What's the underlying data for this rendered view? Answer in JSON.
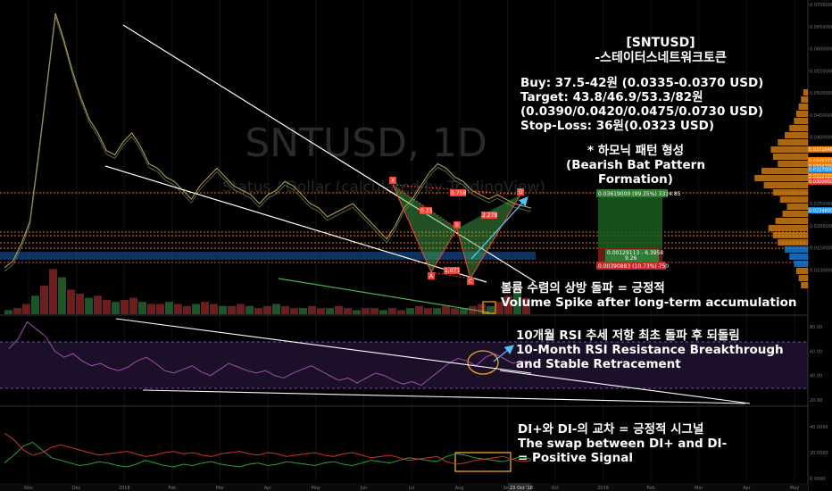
{
  "chart_data": {
    "type": "line",
    "symbol": "SNTUSD, 1D",
    "watermark_title": "SNTUSD, 1D",
    "watermark_sub": "Status / Dollar (calculated by TradingView)",
    "annotations": {
      "title": "[SNTUSD]",
      "subtitle": "-스테이터스네트워크토큰",
      "buy": "Buy: 37.5-42원 (0.0335-0.0370 USD)",
      "target": "Target: 43.8/46.9/53.3/82원",
      "target_usd": "(0.0390/0.0420/0.0475/0.0730 USD)",
      "stop": "Stop-Loss: 36원(0.0323 USD)",
      "pattern_kr": "* 하모닉 패턴 형성",
      "pattern_en": "(Bearish Bat Pattern Formation)",
      "volume_kr": "볼륨 수렴의 상방 돌파 = 긍정적",
      "volume_en": "Volume Spike after long-term accumulation",
      "rsi_kr": "10개월 RSI 추세 저항 최초 돌파 후 되돌림",
      "rsi_en1": "10-Month RSI Resistance Breakthrough",
      "rsi_en2": "and Stable Retracement",
      "di_kr": "DI+와 DI-의 교차 = 긍정적 시그널",
      "di_en1": "The swap between DI+ and DI-",
      "di_en2": "= Positive Signal"
    },
    "harmonic_points": {
      "X": "X",
      "A": "A",
      "B": "B",
      "C": "C",
      "D": "D",
      "ratios": [
        "0.758",
        "0.33",
        "2.278",
        "1.071"
      ]
    },
    "price_axis_labels": [
      "0.07000000",
      "0.06500000",
      "0.06000000",
      "0.05500000",
      "0.05000000",
      "0.04500000",
      "0.04000000",
      "0.03500000",
      "0.03000000",
      "0.02500000",
      "0.02000000",
      "0.01500000",
      "0.01000000"
    ],
    "price_tags": [
      {
        "label": "0.02348000",
        "color": "#2196f3"
      },
      {
        "label": "0.03726467",
        "color": "#f57c00"
      },
      {
        "label": "0.03481630",
        "color": "#f57c00"
      },
      {
        "label": "0.03452735",
        "color": "#f57c00"
      },
      {
        "label": "0.03382000",
        "color": "#f57c00"
      },
      {
        "label": "0.03364235",
        "color": "#f57c00"
      },
      {
        "label": "0.03342000",
        "color": "#f57c00"
      },
      {
        "label": "0.03270000",
        "color": "#2196f3"
      },
      {
        "label": "0.03122000",
        "color": "#f57c00"
      },
      {
        "label": "0.03062000",
        "color": "#f57c00"
      },
      {
        "label": "0.03000000",
        "color": "#f44336"
      }
    ],
    "position_box": {
      "target_label": "0.03619000 (99.35%) 3314.85",
      "entry_label": "0.00129113 - 6.3958",
      "entry_sub": "9.26",
      "stop_label": "0.00390883 (10.73%) 750"
    },
    "rsi_axis": [
      "80.00",
      "60.00",
      "40.00",
      "20.00"
    ],
    "di_axis": [
      "40.0000",
      "20.0000",
      "0.0000"
    ],
    "x_ticks": [
      "Nov",
      "Dec",
      "2018",
      "Feb",
      "Mar",
      "Apr",
      "May",
      "Jun",
      "Jul",
      "Aug",
      "Sep",
      "Oct",
      "2019",
      "Feb",
      "Mar",
      "Apr",
      "May"
    ],
    "x_highlight": "23 Oct '18",
    "series": [
      {
        "name": "price",
        "values": [
          0.0105,
          0.012,
          0.016,
          0.021,
          0.036,
          0.052,
          0.068,
          0.062,
          0.055,
          0.049,
          0.044,
          0.041,
          0.037,
          0.036,
          0.039,
          0.041,
          0.038,
          0.034,
          0.033,
          0.031,
          0.03,
          0.028,
          0.026,
          0.029,
          0.031,
          0.033,
          0.031,
          0.029,
          0.028,
          0.027,
          0.025,
          0.027,
          0.028,
          0.03,
          0.029,
          0.027,
          0.025,
          0.024,
          0.022,
          0.023,
          0.024,
          0.025,
          0.023,
          0.021,
          0.019,
          0.017,
          0.02,
          0.024,
          0.026,
          0.029,
          0.032,
          0.034,
          0.033,
          0.031,
          0.03,
          0.028,
          0.027,
          0.026,
          0.027,
          0.026,
          0.025,
          0.0245,
          0.024
        ]
      },
      {
        "name": "RSI",
        "values": [
          62,
          70,
          84,
          78,
          72,
          60,
          55,
          58,
          52,
          48,
          50,
          46,
          44,
          47,
          52,
          55,
          50,
          44,
          42,
          45,
          48,
          43,
          40,
          45,
          50,
          47,
          44,
          42,
          44,
          40,
          38,
          42,
          45,
          48,
          44,
          40,
          36,
          38,
          34,
          38,
          42,
          40,
          36,
          33,
          35,
          32,
          38,
          44,
          50,
          54,
          52,
          48,
          55,
          58,
          54,
          50,
          52,
          48
        ]
      },
      {
        "name": "DI+",
        "values": [
          12,
          18,
          25,
          28,
          22,
          16,
          14,
          12,
          10,
          11,
          13,
          12,
          10,
          9,
          11,
          14,
          12,
          10,
          9,
          11,
          10,
          12,
          13,
          11,
          10,
          9,
          11,
          12,
          10,
          11,
          13,
          12,
          11,
          10,
          12,
          13,
          11,
          10,
          12,
          14,
          13,
          12,
          14,
          16,
          15,
          14,
          13,
          17,
          19,
          18,
          16,
          15,
          14,
          13,
          15,
          17,
          15
        ]
      },
      {
        "name": "DI-",
        "values": [
          35,
          30,
          22,
          18,
          20,
          24,
          26,
          24,
          22,
          20,
          18,
          19,
          20,
          21,
          19,
          17,
          18,
          20,
          21,
          19,
          20,
          18,
          17,
          19,
          20,
          21,
          19,
          18,
          20,
          19,
          17,
          18,
          19,
          20,
          18,
          17,
          19,
          20,
          18,
          16,
          17,
          18,
          16,
          14,
          15,
          16,
          17,
          13,
          11,
          12,
          14,
          15,
          16,
          17,
          15,
          13,
          14
        ]
      }
    ],
    "volume": [
      2,
      3,
      5,
      9,
      14,
      22,
      18,
      12,
      10,
      8,
      9,
      7,
      6,
      7,
      8,
      6,
      5,
      5,
      6,
      5,
      4,
      5,
      6,
      5,
      4,
      4,
      5,
      4,
      3,
      4,
      5,
      4,
      3,
      3,
      4,
      3,
      3,
      4,
      3,
      2,
      3,
      3,
      2,
      3,
      2,
      3,
      4,
      3,
      3,
      4,
      3,
      3,
      4,
      5,
      4,
      6,
      9,
      12,
      8
    ]
  }
}
